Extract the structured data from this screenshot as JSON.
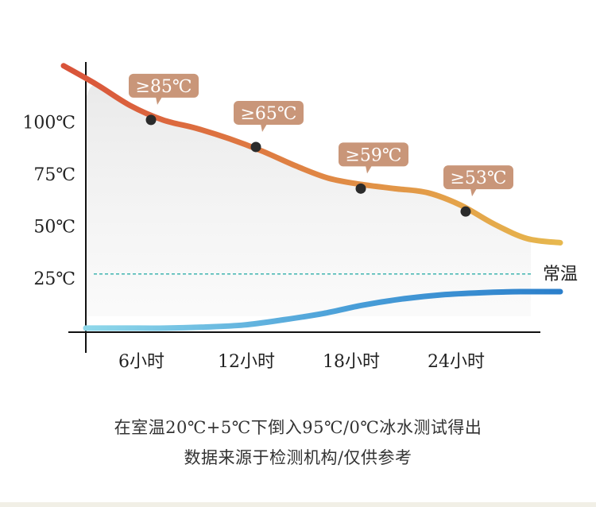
{
  "chart_data": {
    "type": "line",
    "x_categories": [
      "6小时",
      "12小时",
      "18小时",
      "24小时"
    ],
    "y_ticks": [
      "100℃",
      "75℃",
      "50℃",
      "25℃"
    ],
    "y_tick_values": [
      100,
      75,
      50,
      25
    ],
    "ylim": [
      0,
      125
    ],
    "grid": false,
    "series": [
      {
        "key": "hot",
        "colors": [
          "#d9533a",
          "#e08a45",
          "#e7b84e"
        ],
        "curve_y": [
          127,
          118,
          108,
          101,
          97,
          92,
          86,
          79,
          73,
          70,
          68,
          66,
          60,
          51,
          44,
          42
        ],
        "points": [
          {
            "x": "6小时",
            "y": 101,
            "label": "≥85℃"
          },
          {
            "x": "12小时",
            "y": 88,
            "label": "≥65℃"
          },
          {
            "x": "18小时",
            "y": 68,
            "label": "≥59℃"
          },
          {
            "x": "24小时",
            "y": 57,
            "label": "≥53℃"
          }
        ]
      },
      {
        "key": "cold",
        "colors": [
          "#8fd8ea",
          "#4a9fd8",
          "#2b7fcb"
        ],
        "curve_y": [
          1,
          1,
          1,
          1.5,
          2.5,
          5,
          8,
          12,
          15,
          17,
          18,
          18.5,
          18.5
        ]
      }
    ],
    "reference_line": {
      "y": 27,
      "label": "常温",
      "color": "#3fb4b0"
    },
    "callout_color": "#c99679"
  },
  "footnotes": {
    "line1": "在室温20℃+5℃下倒入95℃/0℃冰水测试得出",
    "line2": "数据来源于检测机构/仅供参考"
  }
}
